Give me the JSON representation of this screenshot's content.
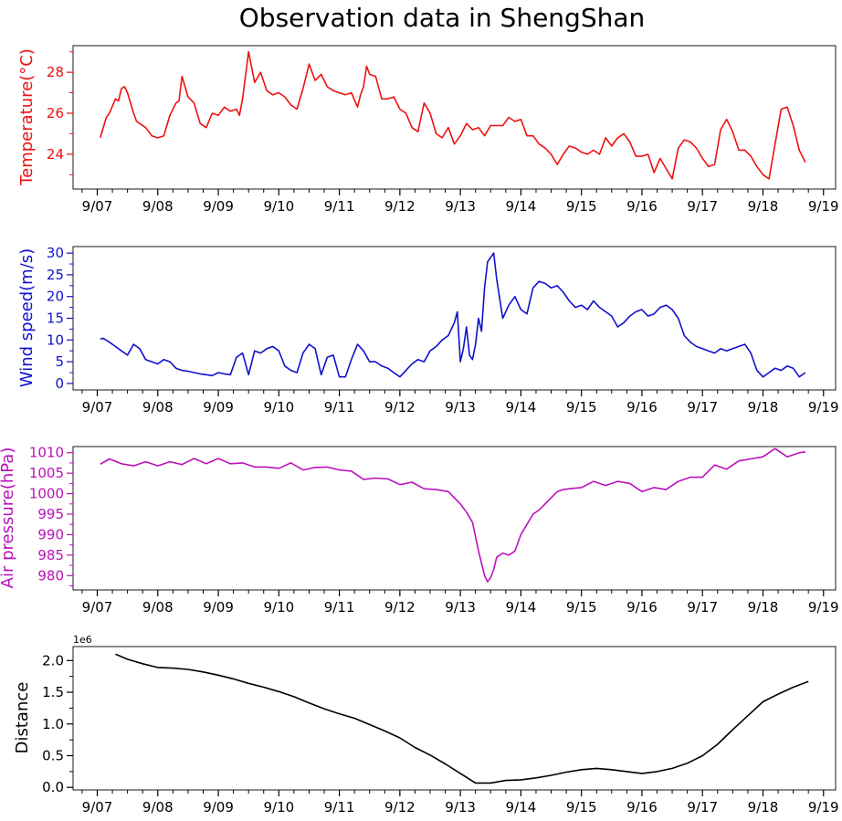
{
  "figure": {
    "title": "Observation data in ShengShan"
  },
  "chart_data": [
    {
      "type": "line",
      "ylabel": "Temperature(°C)",
      "color": "#ee1111",
      "ylim": [
        22.3,
        29.3
      ],
      "xlim": [
        6.6,
        19.2
      ],
      "xticks": [
        7,
        8,
        9,
        10,
        11,
        12,
        13,
        14,
        15,
        16,
        17,
        18,
        19
      ],
      "xtick_labels": [
        "9/07",
        "9/08",
        "9/09",
        "9/10",
        "9/11",
        "9/12",
        "9/13",
        "9/14",
        "9/15",
        "9/16",
        "9/17",
        "9/18",
        "9/19"
      ],
      "yticks": [
        24,
        26,
        28
      ],
      "ytick_labels": [
        "24",
        "26",
        "28"
      ],
      "x": [
        7.05,
        7.15,
        7.2,
        7.3,
        7.35,
        7.4,
        7.45,
        7.5,
        7.6,
        7.65,
        7.7,
        7.8,
        7.9,
        8.0,
        8.1,
        8.2,
        8.3,
        8.35,
        8.4,
        8.5,
        8.6,
        8.7,
        8.8,
        8.9,
        9.0,
        9.1,
        9.2,
        9.3,
        9.35,
        9.4,
        9.5,
        9.6,
        9.7,
        9.8,
        9.9,
        10.0,
        10.1,
        10.2,
        10.3,
        10.4,
        10.5,
        10.6,
        10.7,
        10.8,
        10.9,
        11.0,
        11.1,
        11.2,
        11.3,
        11.35,
        11.4,
        11.45,
        11.5,
        11.6,
        11.7,
        11.8,
        11.9,
        12.0,
        12.1,
        12.2,
        12.3,
        12.4,
        12.5,
        12.6,
        12.7,
        12.8,
        12.9,
        13.0,
        13.1,
        13.2,
        13.3,
        13.4,
        13.5,
        13.6,
        13.7,
        13.8,
        13.9,
        14.0,
        14.1,
        14.2,
        14.3,
        14.4,
        14.5,
        14.6,
        14.7,
        14.8,
        14.9,
        15.0,
        15.1,
        15.2,
        15.3,
        15.4,
        15.5,
        15.6,
        15.7,
        15.8,
        15.9,
        16.0,
        16.1,
        16.2,
        16.3,
        16.4,
        16.5,
        16.6,
        16.7,
        16.8,
        16.9,
        17.0,
        17.1,
        17.2,
        17.3,
        17.4,
        17.5,
        17.6,
        17.7,
        17.8,
        17.9,
        18.0,
        18.1,
        18.2,
        18.3,
        18.4,
        18.5,
        18.6,
        18.7
      ],
      "y": [
        24.8,
        25.8,
        26.0,
        26.7,
        26.6,
        27.2,
        27.3,
        27.0,
        26.0,
        25.6,
        25.5,
        25.3,
        24.9,
        24.8,
        24.9,
        25.9,
        26.5,
        26.6,
        27.8,
        26.8,
        26.5,
        25.5,
        25.3,
        26.0,
        25.9,
        26.3,
        26.1,
        26.2,
        25.9,
        26.7,
        29.0,
        27.5,
        28.0,
        27.1,
        26.9,
        27.0,
        26.8,
        26.4,
        26.2,
        27.2,
        28.4,
        27.6,
        27.9,
        27.3,
        27.1,
        27.0,
        26.9,
        27.0,
        26.3,
        26.9,
        27.3,
        28.3,
        27.9,
        27.8,
        26.7,
        26.7,
        26.8,
        26.2,
        26.0,
        25.3,
        25.1,
        26.5,
        26.0,
        25.0,
        24.8,
        25.3,
        24.5,
        24.9,
        25.5,
        25.2,
        25.3,
        24.9,
        25.4,
        25.4,
        25.4,
        25.8,
        25.6,
        25.7,
        24.9,
        24.9,
        24.5,
        24.3,
        24.0,
        23.5,
        24.0,
        24.4,
        24.3,
        24.1,
        24.0,
        24.2,
        24.0,
        24.8,
        24.4,
        24.8,
        25.0,
        24.6,
        23.9,
        23.9,
        24.0,
        23.1,
        23.8,
        23.3,
        22.8,
        24.3,
        24.7,
        24.6,
        24.3,
        23.8,
        23.4,
        23.5,
        25.2,
        25.7,
        25.1,
        24.2,
        24.2,
        23.9,
        23.4,
        23.0,
        22.8,
        24.5,
        26.2,
        26.3,
        25.4,
        24.2,
        23.6
      ]
    },
    {
      "type": "line",
      "ylabel": "Wind speed(m/s)",
      "color": "#1111cc",
      "ylim": [
        -1.5,
        31.5
      ],
      "xlim": [
        6.6,
        19.2
      ],
      "xticks": [
        7,
        8,
        9,
        10,
        11,
        12,
        13,
        14,
        15,
        16,
        17,
        18,
        19
      ],
      "xtick_labels": [
        "9/07",
        "9/08",
        "9/09",
        "9/10",
        "9/11",
        "9/12",
        "9/13",
        "9/14",
        "9/15",
        "9/16",
        "9/17",
        "9/18",
        "9/19"
      ],
      "yticks": [
        0,
        5,
        10,
        15,
        20,
        25,
        30
      ],
      "ytick_labels": [
        "0",
        "5",
        "10",
        "15",
        "20",
        "25",
        "30"
      ],
      "x": [
        7.05,
        7.1,
        7.2,
        7.3,
        7.4,
        7.5,
        7.6,
        7.7,
        7.8,
        7.9,
        8.0,
        8.1,
        8.2,
        8.3,
        8.4,
        8.5,
        8.6,
        8.7,
        8.8,
        8.9,
        9.0,
        9.1,
        9.2,
        9.3,
        9.4,
        9.5,
        9.6,
        9.7,
        9.8,
        9.9,
        10.0,
        10.1,
        10.2,
        10.3,
        10.4,
        10.5,
        10.6,
        10.7,
        10.8,
        10.9,
        11.0,
        11.1,
        11.2,
        11.3,
        11.4,
        11.5,
        11.6,
        11.7,
        11.8,
        11.9,
        12.0,
        12.1,
        12.2,
        12.3,
        12.4,
        12.5,
        12.6,
        12.7,
        12.8,
        12.9,
        12.95,
        13.0,
        13.05,
        13.1,
        13.15,
        13.2,
        13.25,
        13.3,
        13.35,
        13.4,
        13.45,
        13.5,
        13.55,
        13.6,
        13.7,
        13.8,
        13.9,
        14.0,
        14.1,
        14.2,
        14.3,
        14.4,
        14.5,
        14.6,
        14.7,
        14.8,
        14.9,
        15.0,
        15.1,
        15.2,
        15.3,
        15.4,
        15.5,
        15.6,
        15.7,
        15.8,
        15.9,
        16.0,
        16.1,
        16.2,
        16.3,
        16.4,
        16.5,
        16.6,
        16.7,
        16.8,
        16.9,
        17.0,
        17.1,
        17.2,
        17.3,
        17.4,
        17.5,
        17.6,
        17.7,
        17.8,
        17.9,
        18.0,
        18.1,
        18.2,
        18.3,
        18.4,
        18.5,
        18.6,
        18.7
      ],
      "y": [
        10.2,
        10.4,
        9.5,
        8.5,
        7.5,
        6.5,
        9.0,
        8.0,
        5.5,
        5.0,
        4.5,
        5.5,
        5.0,
        3.5,
        3.0,
        2.8,
        2.5,
        2.2,
        2.0,
        1.8,
        2.5,
        2.2,
        2.0,
        6.0,
        7.0,
        2.0,
        7.5,
        7.0,
        8.0,
        8.5,
        7.5,
        4.0,
        3.0,
        2.5,
        7.0,
        9.0,
        8.0,
        2.0,
        6.0,
        6.5,
        1.5,
        1.5,
        5.5,
        9.0,
        7.5,
        5.0,
        5.0,
        4.0,
        3.5,
        2.5,
        1.5,
        3.0,
        4.5,
        5.5,
        5.0,
        7.5,
        8.5,
        10.0,
        11.0,
        14.0,
        16.5,
        5.0,
        8.0,
        13.0,
        6.5,
        5.5,
        9.0,
        15.0,
        12.0,
        22.0,
        28.0,
        29.0,
        30.0,
        24.0,
        15.0,
        18.0,
        20.0,
        17.0,
        16.0,
        22.0,
        23.5,
        23.0,
        22.0,
        22.5,
        21.0,
        19.0,
        17.5,
        18.0,
        17.0,
        19.0,
        17.5,
        16.5,
        15.5,
        13.0,
        14.0,
        15.5,
        16.5,
        17.0,
        15.5,
        16.0,
        17.5,
        18.0,
        17.0,
        15.0,
        11.0,
        9.5,
        8.5,
        8.0,
        7.5,
        7.0,
        8.0,
        7.5,
        8.0,
        8.5,
        9.0,
        7.0,
        3.0,
        1.5,
        2.5,
        3.5,
        3.0,
        4.0,
        3.5,
        1.5,
        2.5
      ]
    },
    {
      "type": "line",
      "ylabel": "Air pressure(hPa)",
      "color": "#bb11bb",
      "ylim": [
        976.5,
        1011.5
      ],
      "xlim": [
        6.6,
        19.2
      ],
      "xticks": [
        7,
        8,
        9,
        10,
        11,
        12,
        13,
        14,
        15,
        16,
        17,
        18,
        19
      ],
      "xtick_labels": [
        "9/07",
        "9/08",
        "9/09",
        "9/10",
        "9/11",
        "9/12",
        "9/13",
        "9/14",
        "9/15",
        "9/16",
        "9/17",
        "9/18",
        "9/19"
      ],
      "yticks": [
        980,
        985,
        990,
        995,
        1000,
        1005,
        1010
      ],
      "ytick_labels": [
        "980",
        "985",
        "990",
        "995",
        "1000",
        "1005",
        "1010"
      ],
      "x": [
        7.05,
        7.2,
        7.4,
        7.6,
        7.8,
        8.0,
        8.2,
        8.4,
        8.6,
        8.8,
        9.0,
        9.2,
        9.4,
        9.6,
        9.8,
        10.0,
        10.2,
        10.4,
        10.6,
        10.8,
        11.0,
        11.2,
        11.4,
        11.6,
        11.8,
        12.0,
        12.2,
        12.4,
        12.6,
        12.8,
        13.0,
        13.1,
        13.2,
        13.3,
        13.4,
        13.45,
        13.5,
        13.55,
        13.6,
        13.7,
        13.8,
        13.9,
        14.0,
        14.1,
        14.2,
        14.3,
        14.4,
        14.5,
        14.6,
        14.7,
        14.8,
        15.0,
        15.2,
        15.4,
        15.6,
        15.8,
        16.0,
        16.2,
        16.4,
        16.6,
        16.8,
        17.0,
        17.2,
        17.4,
        17.6,
        17.8,
        18.0,
        18.2,
        18.4,
        18.6,
        18.7
      ],
      "y": [
        1007.2,
        1008.5,
        1007.3,
        1006.8,
        1007.8,
        1006.8,
        1007.8,
        1007.1,
        1008.6,
        1007.3,
        1008.6,
        1007.3,
        1007.5,
        1006.5,
        1006.5,
        1006.2,
        1007.5,
        1005.8,
        1006.4,
        1006.5,
        1005.8,
        1005.5,
        1003.5,
        1003.8,
        1003.6,
        1002.2,
        1002.8,
        1001.2,
        1001.0,
        1000.5,
        997.5,
        995.5,
        993.0,
        986.0,
        980.0,
        978.5,
        979.5,
        981.5,
        984.5,
        985.5,
        985.0,
        986.0,
        990.0,
        992.5,
        995.0,
        996.0,
        997.5,
        999.0,
        1000.5,
        1001.0,
        1001.2,
        1001.5,
        1003.0,
        1002.0,
        1003.0,
        1002.5,
        1000.5,
        1001.5,
        1001.0,
        1003.0,
        1004.0,
        1004.0,
        1007.0,
        1006.0,
        1008.0,
        1008.5,
        1009.0,
        1011.0,
        1009.0,
        1010.0,
        1010.2
      ]
    },
    {
      "type": "line",
      "ylabel": "Distance",
      "color": "#000000",
      "scale_label": "1e6",
      "ylim": [
        -0.04,
        2.22
      ],
      "xlim": [
        6.6,
        19.2
      ],
      "xticks": [
        7,
        8,
        9,
        10,
        11,
        12,
        13,
        14,
        15,
        16,
        17,
        18,
        19
      ],
      "xtick_labels": [
        "9/07",
        "9/08",
        "9/09",
        "9/10",
        "9/11",
        "9/12",
        "9/13",
        "9/14",
        "9/15",
        "9/16",
        "9/17",
        "9/18",
        "9/19"
      ],
      "yticks": [
        0.0,
        0.5,
        1.0,
        1.5,
        2.0
      ],
      "ytick_labels": [
        "0.0",
        "0.5",
        "1.0",
        "1.5",
        "2.0"
      ],
      "x": [
        7.3,
        7.5,
        7.75,
        8.0,
        8.25,
        8.5,
        8.75,
        9.0,
        9.25,
        9.5,
        9.75,
        10.0,
        10.25,
        10.5,
        10.75,
        11.0,
        11.25,
        11.5,
        11.75,
        12.0,
        12.25,
        12.5,
        12.75,
        13.0,
        13.25,
        13.5,
        13.75,
        14.0,
        14.25,
        14.5,
        14.75,
        15.0,
        15.25,
        15.5,
        15.75,
        16.0,
        16.25,
        16.5,
        16.75,
        17.0,
        17.25,
        17.5,
        17.75,
        18.0,
        18.25,
        18.5,
        18.75
      ],
      "y": [
        2.1,
        2.02,
        1.95,
        1.89,
        1.88,
        1.86,
        1.82,
        1.77,
        1.71,
        1.64,
        1.58,
        1.51,
        1.43,
        1.33,
        1.24,
        1.16,
        1.09,
        0.99,
        0.89,
        0.78,
        0.63,
        0.51,
        0.37,
        0.22,
        0.07,
        0.07,
        0.11,
        0.12,
        0.15,
        0.19,
        0.24,
        0.28,
        0.3,
        0.28,
        0.25,
        0.22,
        0.25,
        0.3,
        0.38,
        0.5,
        0.68,
        0.91,
        1.13,
        1.35,
        1.47,
        1.58,
        1.67
      ]
    }
  ]
}
